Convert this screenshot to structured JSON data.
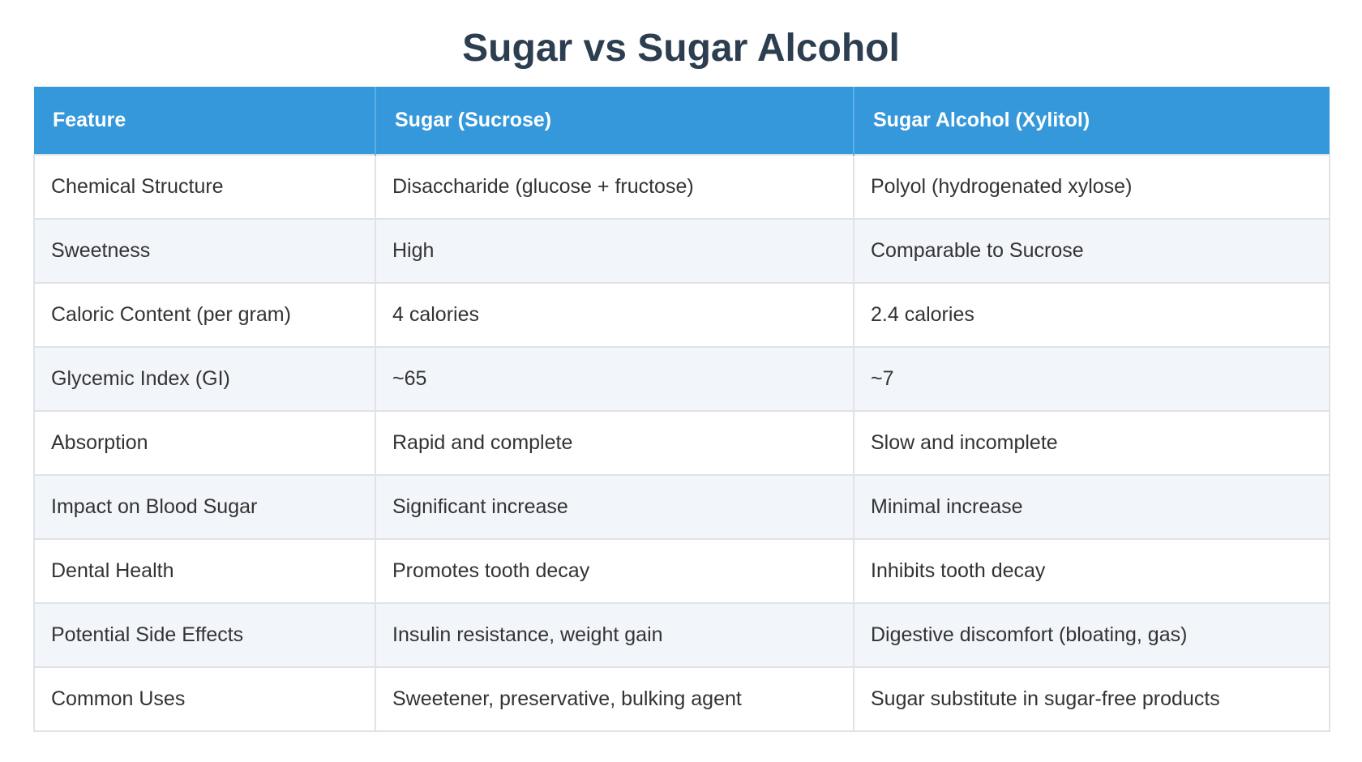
{
  "title": "Sugar vs Sugar Alcohol",
  "table": {
    "headers": [
      "Feature",
      "Sugar (Sucrose)",
      "Sugar Alcohol (Xylitol)"
    ],
    "rows": [
      [
        "Chemical Structure",
        "Disaccharide (glucose + fructose)",
        "Polyol (hydrogenated xylose)"
      ],
      [
        "Sweetness",
        "High",
        "Comparable to Sucrose"
      ],
      [
        "Caloric Content (per gram)",
        "4 calories",
        "2.4 calories"
      ],
      [
        "Glycemic Index (GI)",
        "~65",
        "~7"
      ],
      [
        "Absorption",
        "Rapid and complete",
        "Slow and incomplete"
      ],
      [
        "Impact on Blood Sugar",
        "Significant increase",
        "Minimal increase"
      ],
      [
        "Dental Health",
        "Promotes tooth decay",
        "Inhibits tooth decay"
      ],
      [
        "Potential Side Effects",
        "Insulin resistance, weight gain",
        "Digestive discomfort (bloating, gas)"
      ],
      [
        "Common Uses",
        "Sweetener, preservative, bulking agent",
        "Sugar substitute in sugar-free products"
      ]
    ]
  },
  "colors": {
    "title_text": "#2c3e50",
    "header_background": "#3498db",
    "header_text": "#ffffff",
    "row_alt_background": "#f2f5f9",
    "cell_border": "#dfe3e6"
  }
}
